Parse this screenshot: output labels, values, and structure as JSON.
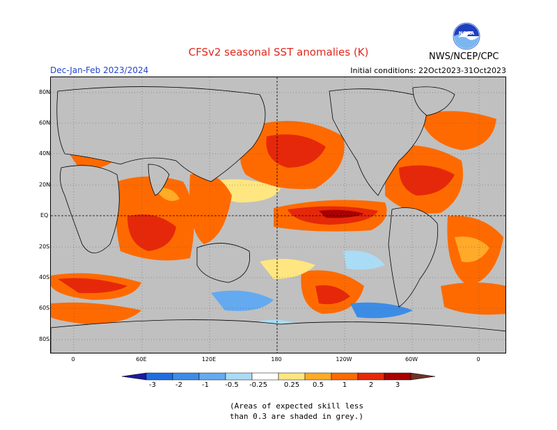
{
  "header": {
    "title": "CFSv2 seasonal SST anomalies (K)",
    "period": "Dec-Jan-Feb 2023/2024",
    "initial_conditions": "Initial conditions: 22Oct2023-31Oct2023",
    "agency": "NWS/NCEP/CPC",
    "logo_text": "NOAA"
  },
  "map": {
    "projection": "cylindrical-equidistant",
    "center_longitude": 180,
    "lat_ticks": [
      "80N",
      "60N",
      "40N",
      "20N",
      "EQ",
      "20S",
      "40S",
      "60S",
      "80S"
    ],
    "lon_ticks": [
      "0",
      "60E",
      "120E",
      "180",
      "120W",
      "60W",
      "0"
    ],
    "grid": "dotted",
    "reference_lines": [
      "EQ",
      "180"
    ],
    "low_skill_color": "#c0c0c0",
    "land_color": "#c0c0c0"
  },
  "colorbar": {
    "labels": [
      "-3",
      "-2",
      "-1",
      "-0.5",
      "-0.25",
      "0.25",
      "0.5",
      "1",
      "2",
      "3"
    ],
    "colors": [
      "#1c1c9c",
      "#1e6ee0",
      "#3c8ce6",
      "#64aaf0",
      "#aadcf5",
      "#ffffff",
      "#ffe680",
      "#ffaa28",
      "#ff6a00",
      "#e6280a",
      "#aa0000",
      "#6e3228"
    ]
  },
  "note": {
    "line1": "(Areas of expected skill less",
    "line2": "than 0.3 are shaded in grey.)"
  }
}
